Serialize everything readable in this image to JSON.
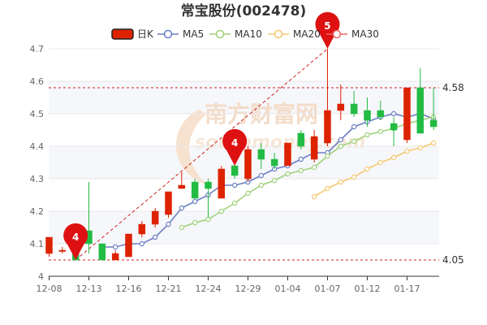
{
  "chart_data": {
    "type": "candlestick",
    "title": "常宝股份(002478)",
    "ylim": [
      4.0,
      4.7
    ],
    "yticks": [
      4.0,
      4.1,
      4.2,
      4.3,
      4.4,
      4.5,
      4.6,
      4.7
    ],
    "ytick_labels": [
      "4",
      "4.1",
      "4.2",
      "4.3",
      "4.4",
      "4.5",
      "4.6",
      "4.7"
    ],
    "x_tick_labels": [
      {
        "label": "12-08",
        "index": 0
      },
      {
        "label": "12-13",
        "index": 3
      },
      {
        "label": "12-16",
        "index": 6
      },
      {
        "label": "12-21",
        "index": 9
      },
      {
        "label": "12-24",
        "index": 12
      },
      {
        "label": "12-29",
        "index": 15
      },
      {
        "label": "01-04",
        "index": 18
      },
      {
        "label": "01-07",
        "index": 21
      },
      {
        "label": "01-12",
        "index": 24
      },
      {
        "label": "01-17",
        "index": 27
      }
    ],
    "legend": {
      "placement": "top",
      "items": [
        {
          "label": "日K",
          "color": "#dd2200",
          "kind": "candle"
        },
        {
          "label": "MA5",
          "color": "#6b7fc4",
          "kind": "line"
        },
        {
          "label": "MA10",
          "color": "#9fd27a",
          "kind": "line"
        },
        {
          "label": "MA20",
          "color": "#f5c870",
          "kind": "line"
        },
        {
          "label": "MA30",
          "color": "#ee6666",
          "kind": "line"
        }
      ]
    },
    "candles": [
      {
        "o": 4.07,
        "c": 4.12,
        "l": 4.06,
        "h": 4.12
      },
      {
        "o": 4.08,
        "c": 4.08,
        "l": 4.07,
        "h": 4.09
      },
      {
        "o": 4.08,
        "c": 4.05,
        "l": 4.05,
        "h": 4.1
      },
      {
        "o": 4.14,
        "c": 4.1,
        "l": 4.07,
        "h": 4.29
      },
      {
        "o": 4.1,
        "c": 4.05,
        "l": 4.05,
        "h": 4.1
      },
      {
        "o": 4.05,
        "c": 4.07,
        "l": 4.05,
        "h": 4.08
      },
      {
        "o": 4.06,
        "c": 4.13,
        "l": 4.06,
        "h": 4.13
      },
      {
        "o": 4.13,
        "c": 4.16,
        "l": 4.12,
        "h": 4.17
      },
      {
        "o": 4.16,
        "c": 4.2,
        "l": 4.15,
        "h": 4.21
      },
      {
        "o": 4.19,
        "c": 4.26,
        "l": 4.18,
        "h": 4.26
      },
      {
        "o": 4.27,
        "c": 4.28,
        "l": 4.27,
        "h": 4.32
      },
      {
        "o": 4.29,
        "c": 4.24,
        "l": 4.24,
        "h": 4.3
      },
      {
        "o": 4.29,
        "c": 4.27,
        "l": 4.18,
        "h": 4.3
      },
      {
        "o": 4.24,
        "c": 4.33,
        "l": 4.24,
        "h": 4.34
      },
      {
        "o": 4.34,
        "c": 4.31,
        "l": 4.3,
        "h": 4.39
      },
      {
        "o": 4.3,
        "c": 4.39,
        "l": 4.29,
        "h": 4.4
      },
      {
        "o": 4.39,
        "c": 4.36,
        "l": 4.33,
        "h": 4.41
      },
      {
        "o": 4.36,
        "c": 4.34,
        "l": 4.33,
        "h": 4.38
      },
      {
        "o": 4.34,
        "c": 4.41,
        "l": 4.34,
        "h": 4.41
      },
      {
        "o": 4.44,
        "c": 4.4,
        "l": 4.39,
        "h": 4.45
      },
      {
        "o": 4.36,
        "c": 4.43,
        "l": 4.35,
        "h": 4.45
      },
      {
        "o": 4.41,
        "c": 4.51,
        "l": 4.4,
        "h": 4.7
      },
      {
        "o": 4.51,
        "c": 4.53,
        "l": 4.48,
        "h": 4.59
      },
      {
        "o": 4.53,
        "c": 4.5,
        "l": 4.49,
        "h": 4.57
      },
      {
        "o": 4.51,
        "c": 4.48,
        "l": 4.46,
        "h": 4.55
      },
      {
        "o": 4.51,
        "c": 4.49,
        "l": 4.48,
        "h": 4.54
      },
      {
        "o": 4.47,
        "c": 4.45,
        "l": 4.4,
        "h": 4.49
      },
      {
        "o": 4.42,
        "c": 4.58,
        "l": 4.41,
        "h": 4.58
      },
      {
        "o": 4.58,
        "c": 4.44,
        "l": 4.44,
        "h": 4.64
      },
      {
        "o": 4.48,
        "c": 4.46,
        "l": 4.45,
        "h": 4.58
      }
    ],
    "ma": [
      {
        "name": "MA5",
        "color": "#6b7fc4",
        "start": 4,
        "values": [
          4.09,
          4.09,
          4.1,
          4.1,
          4.12,
          4.16,
          4.21,
          4.23,
          4.25,
          4.28,
          4.28,
          4.29,
          4.31,
          4.33,
          4.34,
          4.36,
          4.38,
          4.38,
          4.42,
          4.46,
          4.475,
          4.49,
          4.5,
          4.49,
          4.5,
          4.485
        ]
      },
      {
        "name": "MA10",
        "color": "#9fd27a",
        "start": 10,
        "values": [
          4.15,
          4.165,
          4.175,
          4.2,
          4.225,
          4.255,
          4.28,
          4.295,
          4.315,
          4.325,
          4.335,
          4.37,
          4.4,
          4.415,
          4.435,
          4.445,
          4.455,
          4.47,
          4.48,
          4.49
        ]
      },
      {
        "name": "MA20",
        "color": "#f5c870",
        "start": 20,
        "values": [
          4.245,
          4.27,
          4.29,
          4.305,
          4.33,
          4.35,
          4.365,
          4.385,
          4.395,
          4.41
        ]
      },
      {
        "name": "MA30",
        "color": "#ee6666",
        "start": 0,
        "values": []
      }
    ],
    "ref_lines": [
      {
        "value": 4.58,
        "label": "4.58"
      },
      {
        "value": 4.05,
        "label": "4.05"
      }
    ],
    "markers": [
      {
        "label": "4",
        "index": 2,
        "value": 4.05
      },
      {
        "label": "4",
        "index": 14,
        "value": 4.34
      },
      {
        "label": "5",
        "index": 21,
        "value": 4.7
      }
    ],
    "trend_line": {
      "from": {
        "index": 2,
        "value": 4.05
      },
      "to": {
        "index": 21,
        "value": 4.7
      }
    },
    "watermark": [
      "南方财富网",
      "southmoney.com"
    ]
  }
}
